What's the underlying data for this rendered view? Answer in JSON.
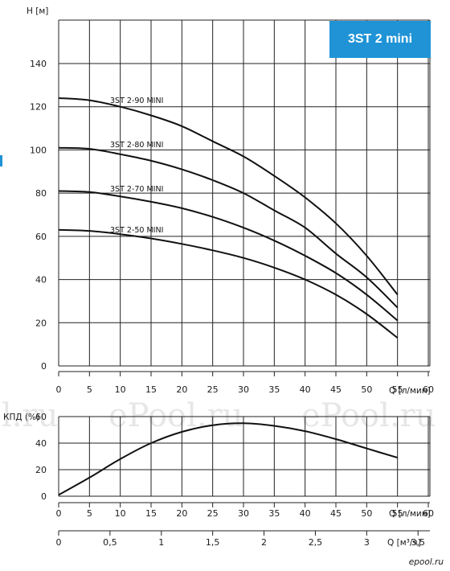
{
  "badge": {
    "text": "3ST 2 mini",
    "color": "#1f93d6"
  },
  "watermarks": [
    "l.ru",
    "ePool.ru",
    "ePool.ru"
  ],
  "footer_logo": "epool.ru",
  "chart_data": [
    {
      "type": "line",
      "title": "",
      "ylabel": "H [м]",
      "xlabel": "Q [л/мин]",
      "xlim": [
        0,
        60
      ],
      "ylim": [
        0,
        140
      ],
      "x_ticks": [
        "0",
        "5",
        "10",
        "15",
        "20",
        "25",
        "30",
        "35",
        "40",
        "45",
        "50",
        "55",
        "60"
      ],
      "y_ticks": [
        "0",
        "20",
        "40",
        "60",
        "80",
        "100",
        "120",
        "140"
      ],
      "grid": true,
      "series": [
        {
          "name": "3ST 2-90 MINI",
          "x": [
            0,
            5,
            10,
            15,
            20,
            25,
            30,
            35,
            40,
            45,
            50,
            55
          ],
          "y": [
            124,
            123,
            120,
            116,
            111,
            104,
            97,
            88,
            78,
            66,
            51,
            33
          ]
        },
        {
          "name": "3ST 2-80 MINI",
          "x": [
            0,
            5,
            10,
            15,
            20,
            25,
            30,
            35,
            40,
            45,
            50,
            55
          ],
          "y": [
            101,
            100.5,
            98,
            95,
            91,
            86,
            80,
            72,
            64,
            52,
            41,
            27
          ]
        },
        {
          "name": "3ST 2-70 MINI",
          "x": [
            0,
            5,
            10,
            15,
            20,
            25,
            30,
            35,
            40,
            45,
            50,
            55
          ],
          "y": [
            81,
            80.5,
            78.5,
            76,
            73,
            69,
            64,
            58,
            51,
            43,
            33,
            21
          ]
        },
        {
          "name": "3ST 2-50 MINI",
          "x": [
            0,
            5,
            10,
            15,
            20,
            25,
            30,
            35,
            40,
            45,
            50,
            55
          ],
          "y": [
            63,
            62.5,
            61,
            59,
            56.5,
            53.5,
            50,
            45.5,
            40,
            33,
            24,
            13
          ]
        }
      ]
    },
    {
      "type": "line",
      "title": "",
      "ylabel": "КПД (%)",
      "xlabel": "Q [л/мин]",
      "secondary_xlabel": "Q [м³/ч]",
      "xlim": [
        0,
        60
      ],
      "ylim": [
        0,
        60
      ],
      "x_ticks": [
        "0",
        "5",
        "10",
        "15",
        "20",
        "25",
        "30",
        "35",
        "40",
        "45",
        "50",
        "55",
        "60"
      ],
      "y_ticks": [
        "0",
        "20",
        "40",
        "60"
      ],
      "secondary_x_ticks": [
        "0",
        "0,5",
        "1",
        "1,5",
        "2",
        "2,5",
        "3",
        "3,5"
      ],
      "grid": true,
      "series": [
        {
          "name": "",
          "x": [
            0,
            5,
            10,
            15,
            20,
            25,
            30,
            35,
            40,
            45,
            50,
            55
          ],
          "y": [
            1,
            14,
            28,
            40,
            48.5,
            53.5,
            55,
            53,
            49,
            43,
            36,
            29
          ]
        }
      ]
    }
  ]
}
